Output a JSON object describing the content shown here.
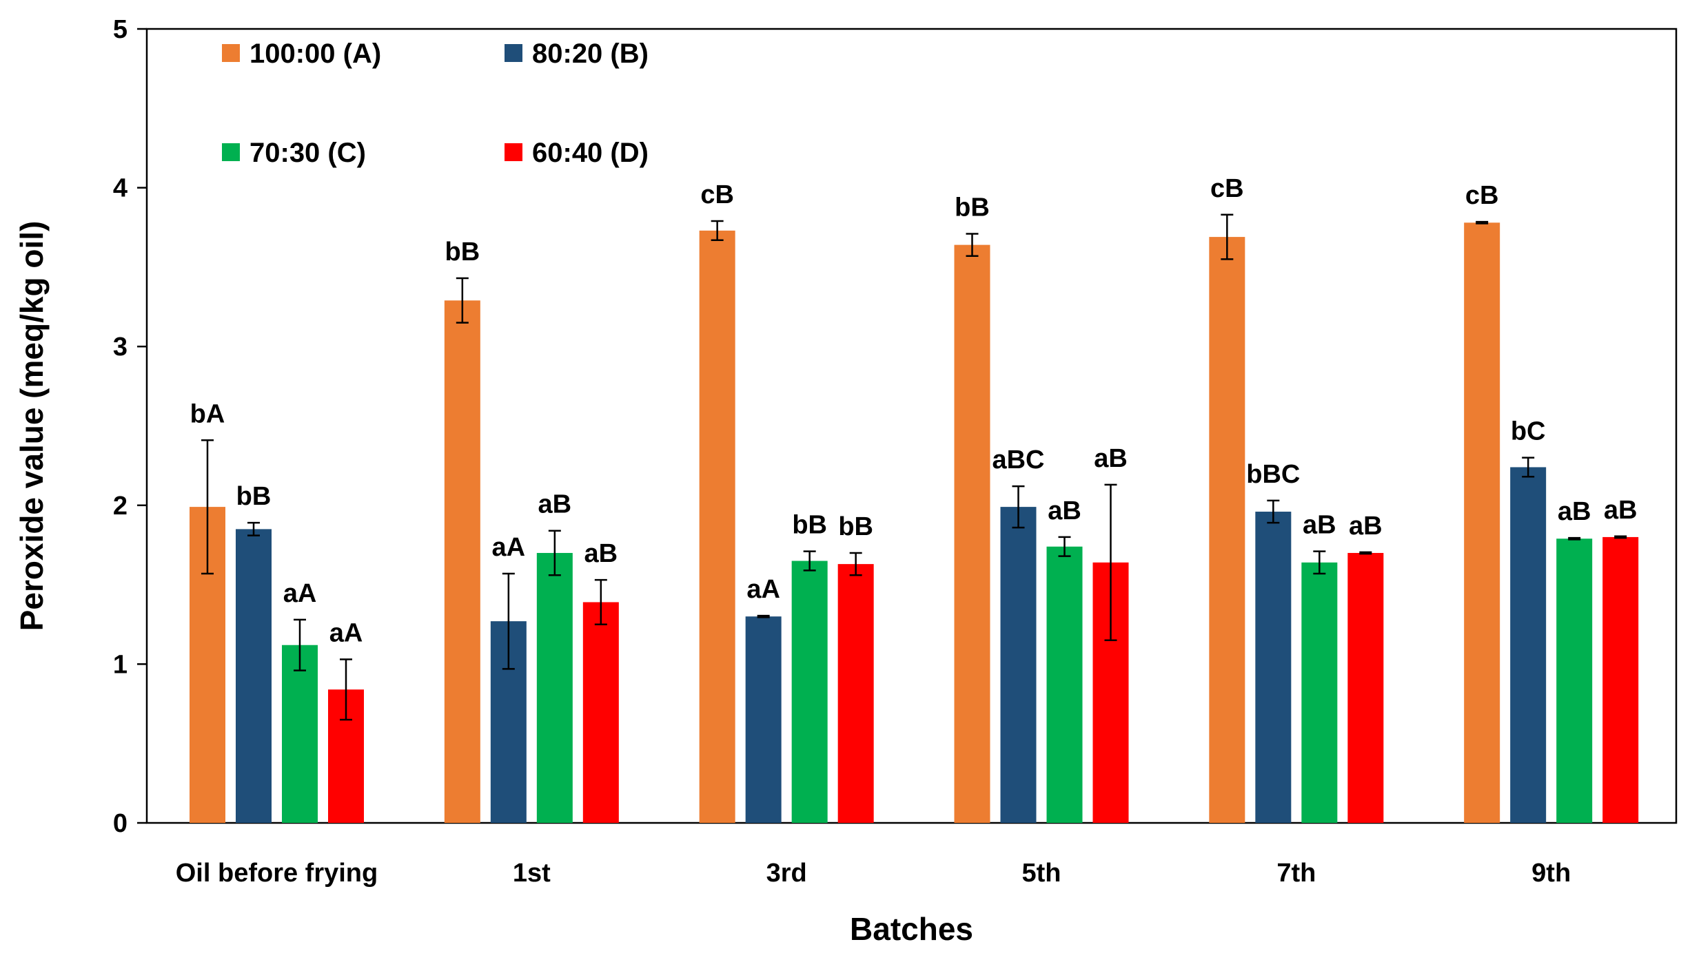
{
  "chart_data": {
    "type": "bar",
    "title": "",
    "xlabel": "Batches",
    "ylabel": "Peroxide value (meq/kg oil)",
    "ylim": [
      0,
      5
    ],
    "yticks": [
      "0",
      "1",
      "2",
      "3",
      "4",
      "5"
    ],
    "grid": false,
    "legend_position": "top-left",
    "categories": [
      "Oil before frying",
      "1st",
      "3rd",
      "5th",
      "7th",
      "9th"
    ],
    "series": [
      {
        "name": "100:00 (A)",
        "color": "#ED7D31",
        "values": [
          1.99,
          3.29,
          3.73,
          3.64,
          3.69,
          3.78
        ],
        "errors": [
          0.42,
          0.14,
          0.06,
          0.07,
          0.14,
          0.005
        ],
        "labels": [
          "bA",
          "bB",
          "cB",
          "bB",
          "cB",
          "cB"
        ]
      },
      {
        "name": "80:20 (B)",
        "color": "#1F4E79",
        "values": [
          1.85,
          1.27,
          1.3,
          1.99,
          1.96,
          2.24
        ],
        "errors": [
          0.04,
          0.3,
          0.005,
          0.13,
          0.07,
          0.06
        ],
        "labels": [
          "bB",
          "aA",
          "aA",
          "aBC",
          "bBC",
          "bC"
        ]
      },
      {
        "name": "70:30 (C)",
        "color": "#00B050",
        "values": [
          1.12,
          1.7,
          1.65,
          1.74,
          1.64,
          1.79
        ],
        "errors": [
          0.16,
          0.14,
          0.06,
          0.06,
          0.07,
          0.005
        ],
        "labels": [
          "aA",
          "aB",
          "bB",
          "aB",
          "aB",
          "aB"
        ]
      },
      {
        "name": "60:40 (D)",
        "color": "#FF0000",
        "values": [
          0.84,
          1.39,
          1.63,
          1.64,
          1.7,
          1.8
        ],
        "errors": [
          0.19,
          0.14,
          0.07,
          0.49,
          0.005,
          0.005
        ],
        "labels": [
          "aA",
          "aB",
          "bB",
          "aB",
          "aB",
          "aB"
        ]
      }
    ]
  }
}
